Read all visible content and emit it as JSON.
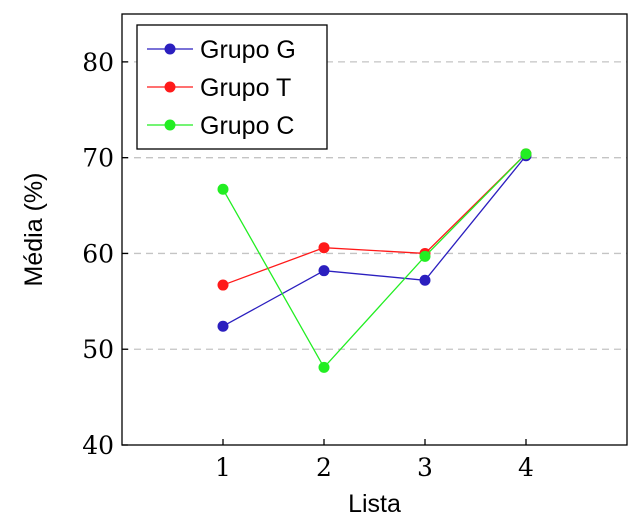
{
  "chart_data": {
    "type": "line",
    "x": [
      1,
      2,
      3,
      4
    ],
    "xticks": [
      "1",
      "2",
      "3",
      "4"
    ],
    "yticks": [
      "40",
      "50",
      "60",
      "70",
      "80"
    ],
    "xlabel": "Lista",
    "ylabel": "Média (%)",
    "xlim": [
      0,
      5
    ],
    "ylim": [
      40,
      85
    ],
    "grid": "horizontal dashed",
    "legend_position": "top-left",
    "series": [
      {
        "name": "Grupo G",
        "values": [
          52.4,
          58.2,
          57.2,
          70.2
        ],
        "color": "#2b1fbf"
      },
      {
        "name": "Grupo T",
        "values": [
          56.7,
          60.6,
          60.0,
          70.4
        ],
        "color": "#ff1a1a"
      },
      {
        "name": "Grupo C",
        "values": [
          66.7,
          48.1,
          59.7,
          70.4
        ],
        "color": "#22ee22"
      }
    ]
  }
}
